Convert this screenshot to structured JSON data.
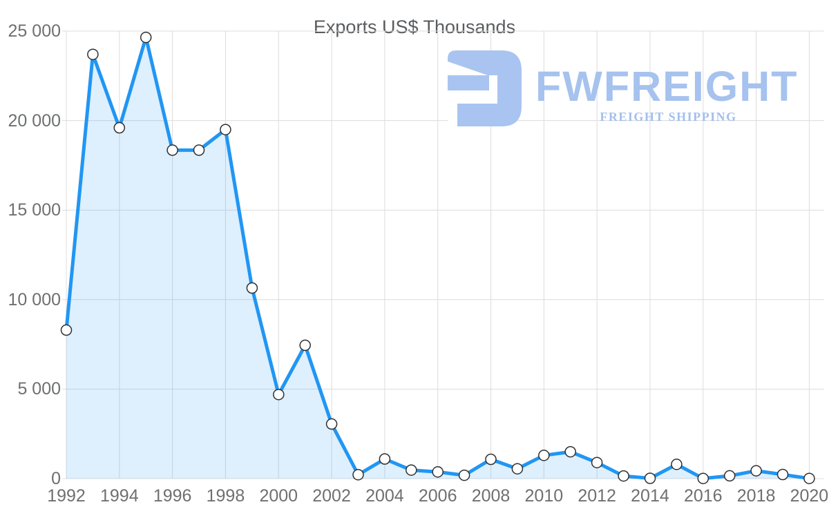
{
  "page": {
    "title": "Exports US$ Thousands"
  },
  "logo": {
    "name": "FWFREIGHT",
    "tagline": "FREIGHT SHIPPING",
    "color": "#a6c2ee",
    "tagline_color": "#a3bfec",
    "icon": "freight-monogram-icon"
  },
  "chart_data": {
    "type": "area",
    "title": "Exports US$ Thousands",
    "series_name": "Exports",
    "x": [
      1992,
      1993,
      1994,
      1995,
      1996,
      1997,
      1998,
      1999,
      2000,
      2001,
      2002,
      2003,
      2004,
      2005,
      2006,
      2007,
      2008,
      2009,
      2010,
      2011,
      2012,
      2013,
      2014,
      2015,
      2016,
      2017,
      2018,
      2019,
      2020
    ],
    "values": [
      8300,
      23700,
      19600,
      24650,
      18350,
      18350,
      19500,
      10650,
      4700,
      7450,
      3050,
      220,
      1100,
      480,
      380,
      190,
      1080,
      550,
      1300,
      1500,
      900,
      150,
      20,
      800,
      10,
      160,
      440,
      230,
      10
    ],
    "xlabel": "",
    "ylabel": "",
    "ylim": [
      0,
      25000
    ],
    "xlim": [
      1992,
      2020
    ],
    "y_ticks": [
      {
        "value": 0,
        "label": "0"
      },
      {
        "value": 5000,
        "label": "5 000"
      },
      {
        "value": 10000,
        "label": "10 000"
      },
      {
        "value": 15000,
        "label": "15 000"
      },
      {
        "value": 20000,
        "label": "20 000"
      },
      {
        "value": 25000,
        "label": "25 000"
      }
    ],
    "x_tick_labels": [
      "1992",
      "1994",
      "1996",
      "1998",
      "2000",
      "2002",
      "2004",
      "2006",
      "2008",
      "2010",
      "2012",
      "2014",
      "2016",
      "2018",
      "2020"
    ],
    "x_tick_step": 2,
    "grid": true,
    "legend": false,
    "colors": {
      "line": "#2196f3",
      "fill": "rgba(33,150,243,0.15)",
      "grid": "#dcdcdc",
      "marker_fill": "#ffffff",
      "marker_stroke": "#2f2f2f",
      "tick_label": "#6d6f71",
      "title": "#595b5e"
    }
  }
}
